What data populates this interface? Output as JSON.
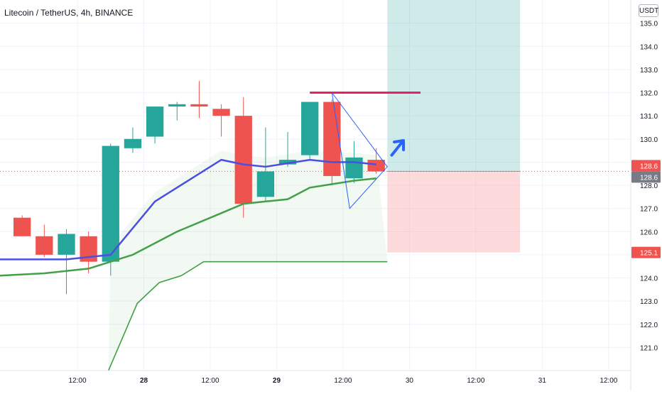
{
  "header": {
    "title": "Litecoin / TetherUS, 4h, BINANCE"
  },
  "price_axis": {
    "currency_badge": "USDT"
  },
  "chart_data": {
    "type": "candlestick",
    "title": "Litecoin / TetherUS, 4h, BINANCE",
    "y_axis": {
      "ticks": [
        121.0,
        122.0,
        123.0,
        124.0,
        125.0,
        126.0,
        127.0,
        128.0,
        129.0,
        130.0,
        131.0,
        132.0,
        133.0,
        134.0,
        135.0
      ],
      "tick_labels": [
        "121.0",
        "122.0",
        "123.0",
        "124.0",
        "125.0",
        "126.0",
        "127.0",
        "128.0",
        "129.0",
        "130.0",
        "131.0",
        "132.0",
        "133.0",
        "134.0",
        "135.0"
      ],
      "range": [
        120.0,
        136.0
      ],
      "position": "right"
    },
    "x_axis": {
      "unit": "4h bars",
      "range": [
        -2,
        26.5
      ],
      "ticks": [
        {
          "x": 1.5,
          "label": "12:00",
          "bold": false
        },
        {
          "x": 4.5,
          "label": "28",
          "bold": true
        },
        {
          "x": 7.5,
          "label": "12:00",
          "bold": false
        },
        {
          "x": 10.5,
          "label": "29",
          "bold": true
        },
        {
          "x": 13.5,
          "label": "12:00",
          "bold": false
        },
        {
          "x": 16.5,
          "label": "30",
          "bold": false
        },
        {
          "x": 19.5,
          "label": "12:00",
          "bold": false
        },
        {
          "x": 22.5,
          "label": "31",
          "bold": false
        },
        {
          "x": 25.5,
          "label": "12:00",
          "bold": false
        }
      ]
    },
    "grid": true,
    "colors": {
      "up": "#26a69a",
      "down": "#ef5350",
      "ema_fast": "#4b4fe0",
      "ema_slow": "#43a047",
      "trend_line": "#e91e63",
      "triangle": "#2962ff",
      "target_zone": "#26a69a",
      "stop_zone": "#f77c80"
    },
    "candles": [
      {
        "x": -1,
        "open": 126.6,
        "high": 126.7,
        "low": 125.8,
        "close": 125.8
      },
      {
        "x": 0,
        "open": 125.8,
        "high": 126.3,
        "low": 124.9,
        "close": 125.0
      },
      {
        "x": 1,
        "open": 125.0,
        "high": 126.1,
        "low": 123.3,
        "close": 125.9
      },
      {
        "x": 2,
        "open": 125.8,
        "high": 126.0,
        "low": 124.2,
        "close": 124.7
      },
      {
        "x": 3,
        "open": 124.7,
        "high": 129.8,
        "low": 124.1,
        "close": 129.7
      },
      {
        "x": 4,
        "open": 129.6,
        "high": 130.5,
        "low": 129.4,
        "close": 130.0
      },
      {
        "x": 5,
        "open": 130.1,
        "high": 131.4,
        "low": 129.8,
        "close": 131.4
      },
      {
        "x": 6,
        "open": 131.4,
        "high": 131.6,
        "low": 130.8,
        "close": 131.5
      },
      {
        "x": 7,
        "open": 131.5,
        "high": 132.5,
        "low": 130.9,
        "close": 131.4
      },
      {
        "x": 8,
        "open": 131.3,
        "high": 131.5,
        "low": 130.1,
        "close": 131.0
      },
      {
        "x": 9,
        "open": 131.0,
        "high": 131.8,
        "low": 126.6,
        "close": 127.2
      },
      {
        "x": 10,
        "open": 127.5,
        "high": 130.5,
        "low": 127.3,
        "close": 128.6
      },
      {
        "x": 11,
        "open": 128.9,
        "high": 130.3,
        "low": 128.8,
        "close": 129.1
      },
      {
        "x": 12,
        "open": 129.3,
        "high": 131.6,
        "low": 129.1,
        "close": 131.6
      },
      {
        "x": 13,
        "open": 131.6,
        "high": 131.7,
        "low": 128.0,
        "close": 128.4
      },
      {
        "x": 14,
        "open": 128.3,
        "high": 129.9,
        "low": 128.1,
        "close": 129.2
      },
      {
        "x": 15,
        "open": 129.1,
        "high": 129.6,
        "low": 128.5,
        "close": 128.6
      }
    ],
    "ema_fast": [
      [
        -2,
        124.8
      ],
      [
        1,
        124.8
      ],
      [
        3,
        125.0
      ],
      [
        5,
        127.3
      ],
      [
        7,
        128.5
      ],
      [
        8,
        129.1
      ],
      [
        9,
        128.9
      ],
      [
        10,
        128.8
      ],
      [
        12,
        129.1
      ],
      [
        13,
        129.0
      ],
      [
        14,
        129.0
      ],
      [
        15,
        128.9
      ]
    ],
    "ema_slow": [
      [
        -2,
        124.1
      ],
      [
        0,
        124.2
      ],
      [
        2,
        124.4
      ],
      [
        4,
        125.0
      ],
      [
        6,
        126.0
      ],
      [
        8,
        126.8
      ],
      [
        9,
        127.2
      ],
      [
        10,
        127.3
      ],
      [
        11,
        127.4
      ],
      [
        12,
        127.9
      ],
      [
        14,
        128.2
      ],
      [
        15,
        128.3
      ]
    ],
    "lower_band": [
      [
        2.9,
        120.0
      ],
      [
        4.2,
        122.9
      ],
      [
        5.2,
        123.8
      ],
      [
        6.2,
        124.1
      ],
      [
        7.2,
        124.7
      ],
      [
        15.5,
        124.7
      ]
    ],
    "trend_line": {
      "x1": 12.0,
      "x2": 17.0,
      "y": 132.0
    },
    "triangle": [
      [
        13.0,
        132.0
      ],
      [
        15.5,
        128.8
      ],
      [
        13.8,
        127.0
      ]
    ],
    "forecast_arrow": {
      "from": [
        15.7,
        129.3
      ],
      "to": [
        16.2,
        129.9
      ]
    },
    "long_position": {
      "x_start": 15.5,
      "x_end": 21.5,
      "entry": 128.6,
      "target": 136.0,
      "stop": 125.1
    },
    "current_price": 128.6,
    "price_labels": [
      {
        "price": 128.6,
        "label": "128.6",
        "style": "down"
      },
      {
        "price": 128.6,
        "label": "128.6",
        "style": "gray"
      },
      {
        "price": 125.1,
        "label": "125.1",
        "style": "down"
      }
    ]
  }
}
